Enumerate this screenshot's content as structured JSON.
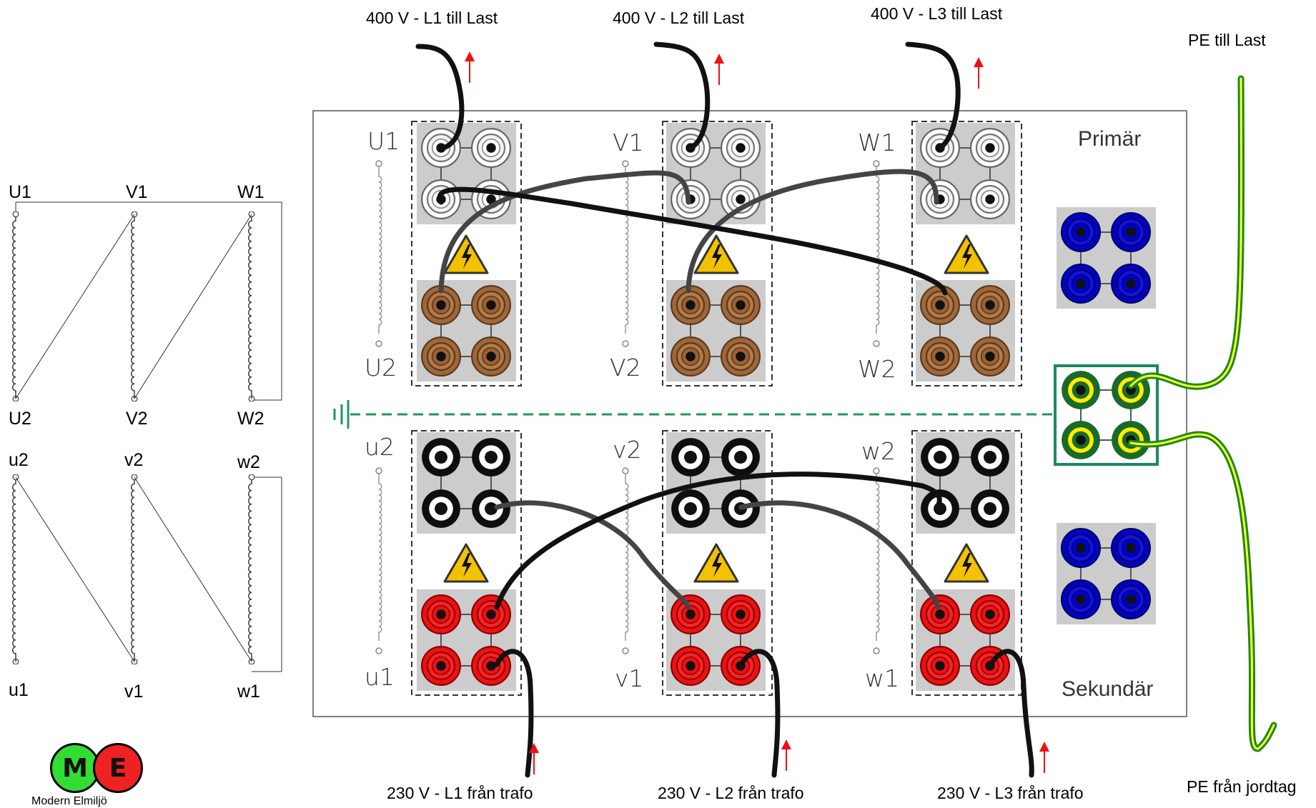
{
  "feed_labels": {
    "l1_load": "400 V - L1 till Last",
    "l2_load": "400 V - L2 till Last",
    "l3_load": "400 V - L3 till Last",
    "pe_load": "PE till Last",
    "l1_trafo": "230 V - L1 från trafo",
    "l2_trafo": "230 V - L2 från trafo",
    "l3_trafo": "230 V - L3 från trafo",
    "pe_ground": "PE från jordtag"
  },
  "panel": {
    "primary_label": "Primär",
    "secondary_label": "Sekundär",
    "primary_windings": [
      {
        "top": "U1",
        "bottom": "U2"
      },
      {
        "top": "V1",
        "bottom": "V2"
      },
      {
        "top": "W1",
        "bottom": "W2"
      }
    ],
    "secondary_windings": [
      {
        "top": "u2",
        "bottom": "u1"
      },
      {
        "top": "v2",
        "bottom": "v1"
      },
      {
        "top": "w2",
        "bottom": "w1"
      }
    ]
  },
  "schematic": {
    "primary_top": [
      "U1",
      "V1",
      "W1"
    ],
    "primary_bottom": [
      "U2",
      "V2",
      "W2"
    ],
    "secondary_top": [
      "u2",
      "v2",
      "w2"
    ],
    "secondary_bottom": [
      "u1",
      "v1",
      "w1"
    ]
  },
  "logo": {
    "m_letter": "M",
    "e_letter": "E",
    "caption": "Modern Elmiljö",
    "m_color": "#33dd33",
    "e_color": "#ee2222"
  },
  "colors": {
    "primary_jack": "#ffffff",
    "primary_neutral_jack": "#a0673a",
    "secondary_jack": "#111111",
    "secondary_line_jack": "#ee1111",
    "neutral_jack": "#0000cc",
    "pe_jack": "#1a7a2a",
    "arrow": "#ee1111",
    "ground_dash": "#1a9a5a"
  }
}
